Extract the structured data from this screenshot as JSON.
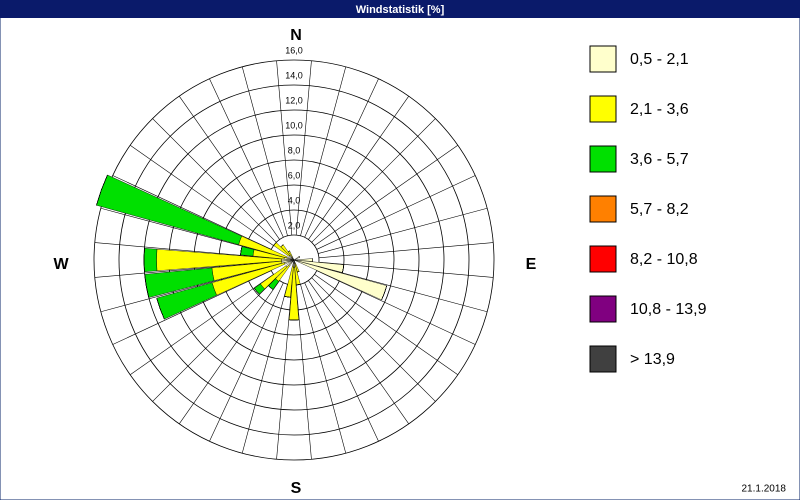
{
  "chart_data": {
    "type": "windrose",
    "title": "Windstatistik [%]",
    "directions": [
      "N",
      "E",
      "S",
      "W"
    ],
    "date": "21.1.2018",
    "ylim": [
      0,
      16
    ],
    "yticks": [
      {
        "value": 2,
        "label": "2,0"
      },
      {
        "value": 4,
        "label": "4,0"
      },
      {
        "value": 6,
        "label": "6,0"
      },
      {
        "value": 8,
        "label": "8,0"
      },
      {
        "value": 10,
        "label": "10,0"
      },
      {
        "value": 12,
        "label": "12,0"
      },
      {
        "value": 14,
        "label": "14,0"
      },
      {
        "value": 16,
        "label": "16,0"
      }
    ],
    "series": [
      {
        "name": "0,5 - 2,1",
        "color": "#ffffcc",
        "values": [
          0,
          0,
          0,
          0,
          0,
          0,
          0.5,
          0,
          0,
          1.5,
          4.0,
          7.7,
          0,
          0,
          0,
          0,
          0.3,
          0.5,
          0.6,
          0.5,
          0,
          0,
          0.6,
          0.8,
          0,
          0.8,
          1.0,
          1.0,
          0.8,
          0.6,
          0,
          0.5,
          0.5,
          0.3,
          0,
          0
        ]
      },
      {
        "name": "2,1 - 3,6",
        "color": "#ffff00",
        "values": [
          0,
          0,
          0,
          0,
          0,
          0,
          0,
          0,
          0,
          0,
          0,
          0,
          0,
          0,
          0,
          0,
          0.7,
          1.5,
          4.2,
          2.5,
          0,
          0,
          1.5,
          2.5,
          0,
          6.0,
          5.6,
          10.0,
          2.5,
          4.0,
          0,
          1.5,
          1.0,
          0.5,
          0,
          0
        ]
      },
      {
        "name": "3,6 - 5,7",
        "color": "#00e000",
        "values": [
          0,
          0,
          0,
          0,
          0,
          0,
          0,
          0,
          0,
          0,
          0,
          0,
          0,
          0,
          0,
          0,
          0,
          0,
          0,
          0,
          0,
          0,
          0.8,
          0.6,
          0,
          4.6,
          5.4,
          1.0,
          1.0,
          11.8,
          0,
          0,
          0,
          0,
          0,
          0
        ]
      },
      {
        "name": "5,7 - 8,2",
        "color": "#ff8000",
        "values": [
          0,
          0,
          0,
          0,
          0,
          0,
          0,
          0,
          0,
          0,
          0,
          0,
          0,
          0,
          0,
          0,
          0,
          0,
          0,
          0,
          0,
          0,
          0,
          0,
          0,
          0,
          0,
          0,
          0,
          0,
          0,
          0,
          0,
          0,
          0,
          0
        ]
      },
      {
        "name": "8,2 - 10,8",
        "color": "#ff0000",
        "values": [
          0,
          0,
          0,
          0,
          0,
          0,
          0,
          0,
          0,
          0,
          0,
          0,
          0,
          0,
          0,
          0,
          0,
          0,
          0,
          0,
          0,
          0,
          0,
          0,
          0,
          0,
          0,
          0,
          0,
          0,
          0,
          0,
          0,
          0,
          0,
          0
        ]
      },
      {
        "name": "10,8 - 13,9",
        "color": "#800080",
        "values": [
          0,
          0,
          0,
          0,
          0,
          0,
          0,
          0,
          0,
          0,
          0,
          0,
          0,
          0,
          0,
          0,
          0,
          0,
          0,
          0,
          0,
          0,
          0,
          0,
          0,
          0,
          0,
          0,
          0,
          0,
          0,
          0,
          0,
          0,
          0,
          0
        ]
      },
      {
        "name": "> 13,9",
        "color": "#404040",
        "values": [
          0,
          0,
          0,
          0,
          0,
          0,
          0,
          0,
          0,
          0,
          0,
          0,
          0,
          0,
          0,
          0,
          0,
          0,
          0,
          0,
          0,
          0,
          0,
          0,
          0,
          0,
          0,
          0,
          0,
          0,
          0,
          0,
          0,
          0,
          0,
          0
        ]
      }
    ]
  }
}
